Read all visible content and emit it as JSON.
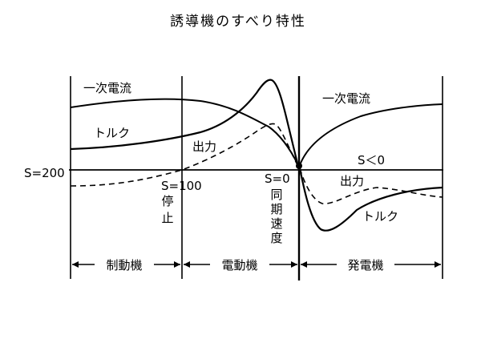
{
  "title": "誘導機のすべり特性",
  "labels": {
    "primary_current_left": "一次電流",
    "primary_current_right": "一次電流",
    "torque_left": "トルク",
    "torque_right": "トルク",
    "output_left": "出力",
    "output_right": "出力",
    "s_lt_0": "S＜0",
    "s_200": "S=200",
    "s_100": "S=100",
    "s_0": "S=0",
    "stop_1": "停",
    "stop_2": "止",
    "sync_1": "同",
    "sync_2": "期",
    "sync_3": "速",
    "sync_4": "度"
  },
  "zones": {
    "brake": "制動機",
    "motor": "電動機",
    "generator": "発電機"
  },
  "colors": {
    "ink": "#000000",
    "background": "#ffffff"
  }
}
